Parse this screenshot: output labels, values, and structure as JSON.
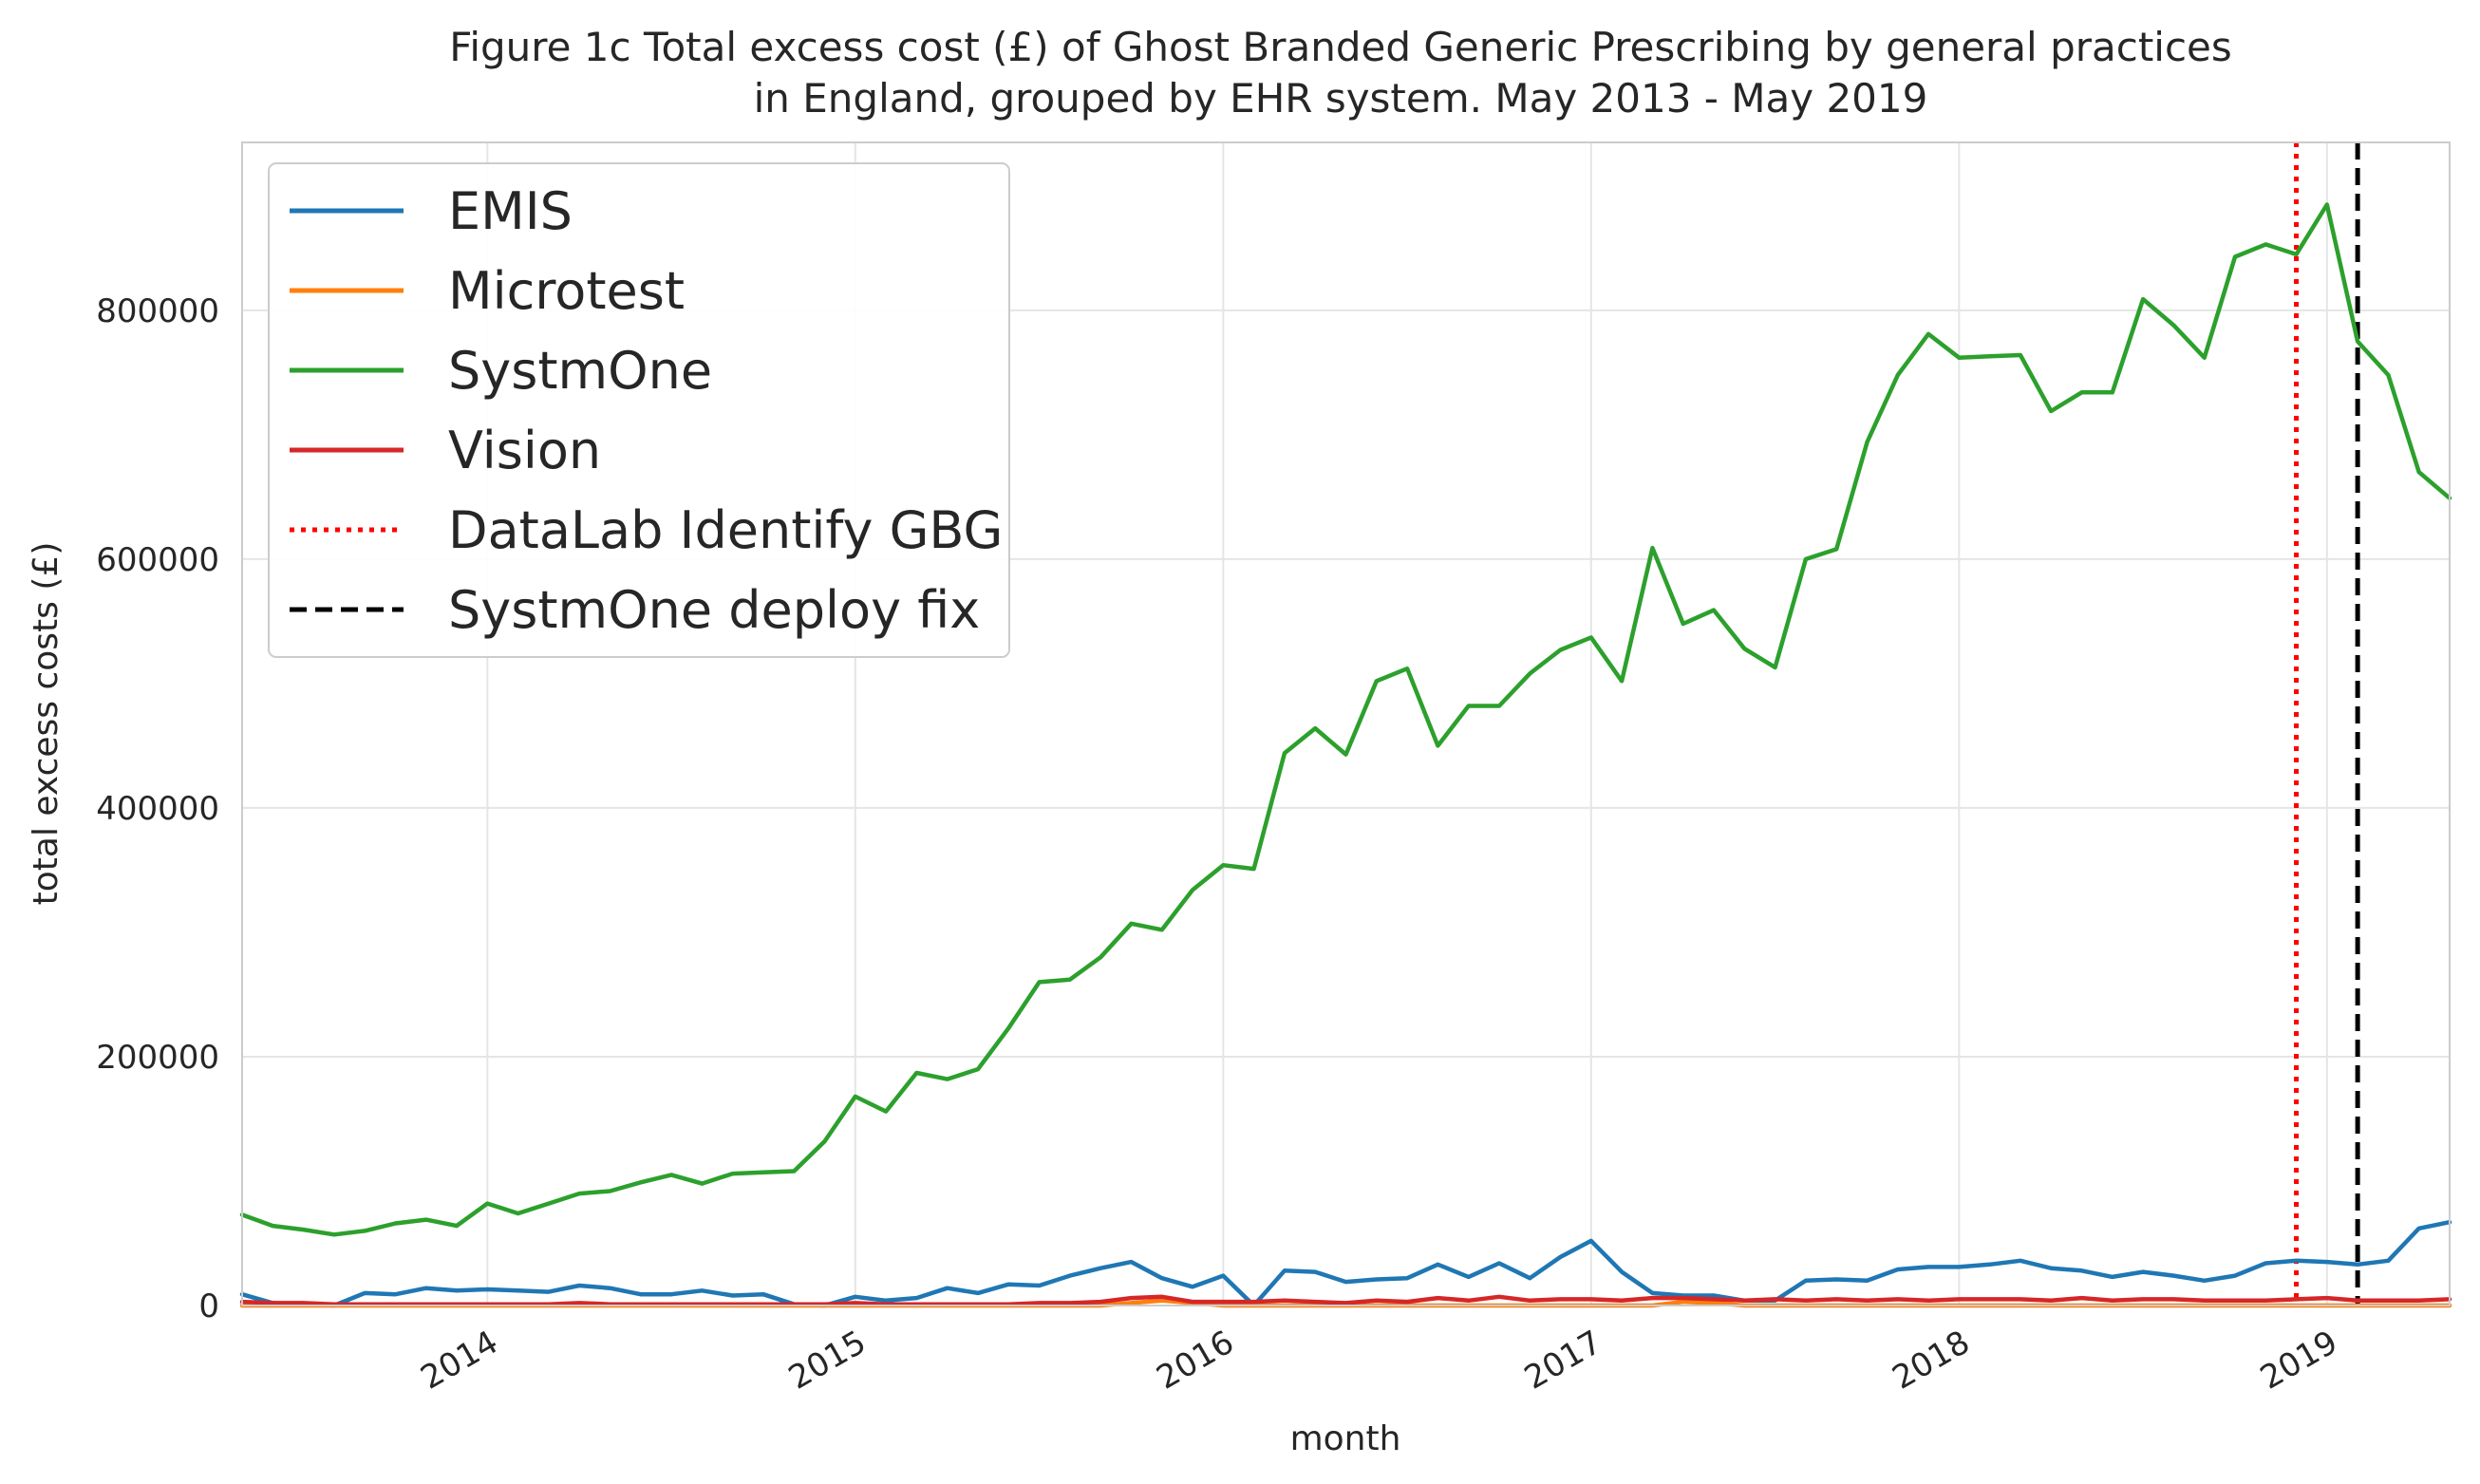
{
  "chart_data": {
    "type": "line",
    "title": [
      "Figure 1c Total excess cost (£) of Ghost Branded Generic Prescribing by general practices",
      "in England, grouped by EHR system. May 2013 - May 2019"
    ],
    "xlabel": "month",
    "ylabel": "total excess costs (£)",
    "x_ticks": [
      "2014",
      "2015",
      "2016",
      "2017",
      "2018",
      "2019"
    ],
    "y_ticks": [
      "0",
      "200000",
      "400000",
      "600000",
      "800000"
    ],
    "ylim": [
      0,
      935000
    ],
    "xlim": [
      "2013-05",
      "2019-05"
    ],
    "grid": true,
    "legend_position": "top-left",
    "x": [
      "2013-05",
      "2013-06",
      "2013-07",
      "2013-08",
      "2013-09",
      "2013-10",
      "2013-11",
      "2013-12",
      "2014-01",
      "2014-02",
      "2014-03",
      "2014-04",
      "2014-05",
      "2014-06",
      "2014-07",
      "2014-08",
      "2014-09",
      "2014-10",
      "2014-11",
      "2014-12",
      "2015-01",
      "2015-02",
      "2015-03",
      "2015-04",
      "2015-05",
      "2015-06",
      "2015-07",
      "2015-08",
      "2015-09",
      "2015-10",
      "2015-11",
      "2015-12",
      "2016-01",
      "2016-02",
      "2016-03",
      "2016-04",
      "2016-05",
      "2016-06",
      "2016-07",
      "2016-08",
      "2016-09",
      "2016-10",
      "2016-11",
      "2016-12",
      "2017-01",
      "2017-02",
      "2017-03",
      "2017-04",
      "2017-05",
      "2017-06",
      "2017-07",
      "2017-08",
      "2017-09",
      "2017-10",
      "2017-11",
      "2017-12",
      "2018-01",
      "2018-02",
      "2018-03",
      "2018-04",
      "2018-05",
      "2018-06",
      "2018-07",
      "2018-08",
      "2018-09",
      "2018-10",
      "2018-11",
      "2018-12",
      "2019-01",
      "2019-02",
      "2019-03",
      "2019-04",
      "2019-05"
    ],
    "series": [
      {
        "name": "EMIS",
        "color": "#1f77b4",
        "style": "solid",
        "values": [
          9000,
          2000,
          1000,
          0,
          10000,
          9000,
          14000,
          12000,
          13000,
          12000,
          11000,
          16000,
          14000,
          9000,
          9000,
          12000,
          8000,
          9000,
          1000,
          0,
          7000,
          4000,
          6000,
          14000,
          10000,
          17000,
          16000,
          24000,
          30000,
          35000,
          22000,
          15000,
          24000,
          0,
          28000,
          27000,
          19000,
          21000,
          22000,
          33000,
          23000,
          34000,
          22000,
          39000,
          52000,
          27000,
          10000,
          8000,
          8000,
          4000,
          4000,
          20000,
          21000,
          20000,
          29000,
          31000,
          31000,
          33000,
          36000,
          30000,
          28000,
          23000,
          27000,
          24000,
          20000,
          24000,
          34000,
          36000,
          35000,
          33000,
          36000,
          62000,
          67000
        ]
      },
      {
        "name": "Microtest",
        "color": "#ff7f0e",
        "style": "solid",
        "values": [
          0,
          0,
          0,
          0,
          0,
          0,
          0,
          0,
          0,
          0,
          0,
          0,
          0,
          0,
          0,
          0,
          0,
          0,
          0,
          0,
          0,
          0,
          0,
          0,
          0,
          0,
          0,
          0,
          0,
          2000,
          4000,
          2000,
          0,
          0,
          0,
          0,
          0,
          0,
          0,
          0,
          0,
          0,
          0,
          0,
          0,
          0,
          0,
          3000,
          2000,
          0,
          0,
          0,
          0,
          0,
          0,
          0,
          0,
          0,
          0,
          0,
          0,
          0,
          0,
          0,
          0,
          0,
          0,
          0,
          0,
          0,
          0,
          0,
          0
        ]
      },
      {
        "name": "SystmOne",
        "color": "#2ca02c",
        "style": "solid",
        "values": [
          73000,
          64000,
          61000,
          57000,
          60000,
          66000,
          69000,
          64000,
          82000,
          74000,
          82000,
          90000,
          92000,
          99000,
          105000,
          98000,
          106000,
          107000,
          108000,
          132000,
          168000,
          156000,
          187000,
          182000,
          190000,
          223000,
          260000,
          262000,
          280000,
          307000,
          302000,
          334000,
          354000,
          351000,
          444000,
          464000,
          443000,
          502000,
          512000,
          450000,
          482000,
          482000,
          508000,
          527000,
          537000,
          502000,
          609000,
          548000,
          559000,
          528000,
          513000,
          600000,
          608000,
          694000,
          748000,
          781000,
          762000,
          763000,
          764000,
          719000,
          734000,
          734000,
          809000,
          788000,
          762000,
          843000,
          853000,
          845000,
          885000,
          775000,
          748000,
          670000,
          649000
        ]
      },
      {
        "name": "Vision",
        "color": "#d62728",
        "style": "solid",
        "values": [
          3000,
          2000,
          2000,
          1000,
          1000,
          1000,
          1000,
          1000,
          1000,
          1000,
          1000,
          2000,
          1000,
          1000,
          1000,
          1000,
          1000,
          1000,
          1000,
          1000,
          2000,
          1000,
          1000,
          1000,
          1000,
          1000,
          2000,
          2000,
          3000,
          6000,
          7000,
          3000,
          3000,
          3000,
          4000,
          3000,
          2000,
          4000,
          3000,
          6000,
          4000,
          7000,
          4000,
          5000,
          5000,
          4000,
          6000,
          6000,
          5000,
          4000,
          5000,
          4000,
          5000,
          4000,
          5000,
          4000,
          5000,
          5000,
          5000,
          4000,
          6000,
          4000,
          5000,
          5000,
          4000,
          4000,
          4000,
          5000,
          6000,
          4000,
          4000,
          4000,
          5000
        ]
      }
    ],
    "annotations": [
      {
        "name": "DataLab Identify GBG",
        "x": "2018-12",
        "color": "#ff0000",
        "style": "dotted"
      },
      {
        "name": "SystmOne deploy fix",
        "x": "2019-02",
        "color": "#000000",
        "style": "dashed"
      }
    ]
  }
}
